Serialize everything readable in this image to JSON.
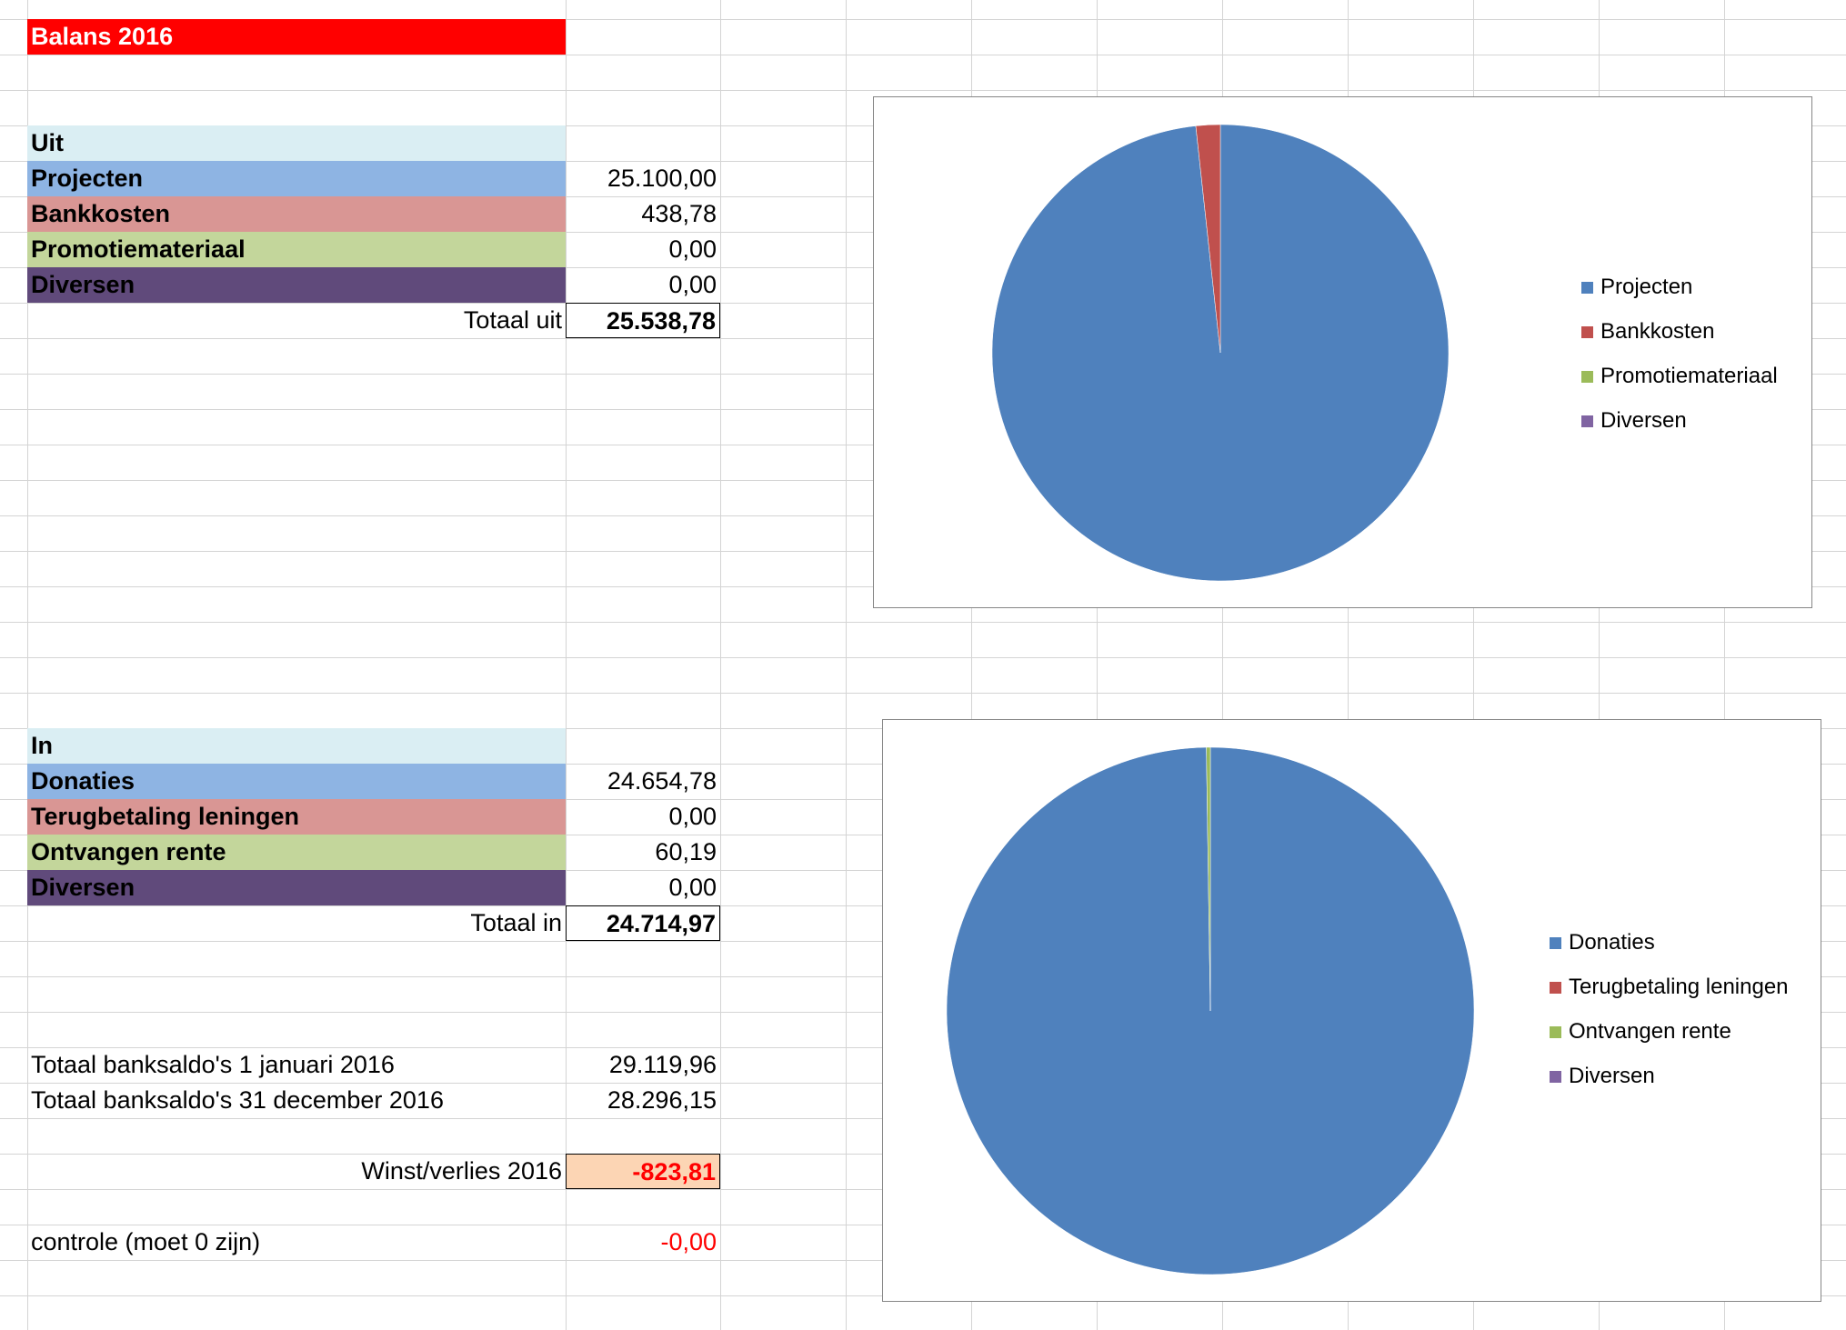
{
  "sheet": {
    "title": "Balans 2016",
    "uit": {
      "header": "Uit",
      "rows": [
        {
          "label": "Projecten",
          "value": "25.100,00",
          "color": "#8eb4e3"
        },
        {
          "label": "Bankkosten",
          "value": "438,78",
          "color": "#d99694"
        },
        {
          "label": "Promotiemateriaal",
          "value": "0,00",
          "color": "#c3d69b"
        },
        {
          "label": "Diversen",
          "value": "0,00",
          "color": "#604a7b"
        }
      ],
      "total_label": "Totaal uit",
      "total_value": "25.538,78"
    },
    "in": {
      "header": "In",
      "rows": [
        {
          "label": "Donaties",
          "value": "24.654,78",
          "color": "#8eb4e3"
        },
        {
          "label": "Terugbetaling leningen",
          "value": "0,00",
          "color": "#d99694"
        },
        {
          "label": "Ontvangen rente",
          "value": "60,19",
          "color": "#c3d69b"
        },
        {
          "label": "Diversen",
          "value": "0,00",
          "color": "#604a7b"
        }
      ],
      "total_label": "Totaal in",
      "total_value": "24.714,97"
    },
    "bank_start_label": "Totaal banksaldo's 1 januari 2016",
    "bank_start_value": "29.119,96",
    "bank_end_label": "Totaal banksaldo's 31 december 2016",
    "bank_end_value": "28.296,15",
    "result_label": "Winst/verlies 2016",
    "result_value": "-823,81",
    "check_label": "controle (moet 0 zijn)",
    "check_value": "-0,00"
  },
  "colors": {
    "title_bg": "#ff0000",
    "header_bg": "#daeef3",
    "result_bg": "#fcd5b4",
    "negative": "#ff0000"
  },
  "chart_data": [
    {
      "type": "pie",
      "categories": [
        "Projecten",
        "Bankkosten",
        "Promotiemateriaal",
        "Diversen"
      ],
      "values": [
        25100.0,
        438.78,
        0.0,
        0.0
      ],
      "colors": [
        "#4f81bd",
        "#c0504d",
        "#9bbb59",
        "#8064a2"
      ],
      "legend": "right"
    },
    {
      "type": "pie",
      "categories": [
        "Donaties",
        "Terugbetaling leningen",
        "Ontvangen rente",
        "Diversen"
      ],
      "values": [
        24654.78,
        0.0,
        60.19,
        0.0
      ],
      "colors": [
        "#4f81bd",
        "#c0504d",
        "#9bbb59",
        "#8064a2"
      ],
      "legend": "right"
    }
  ]
}
